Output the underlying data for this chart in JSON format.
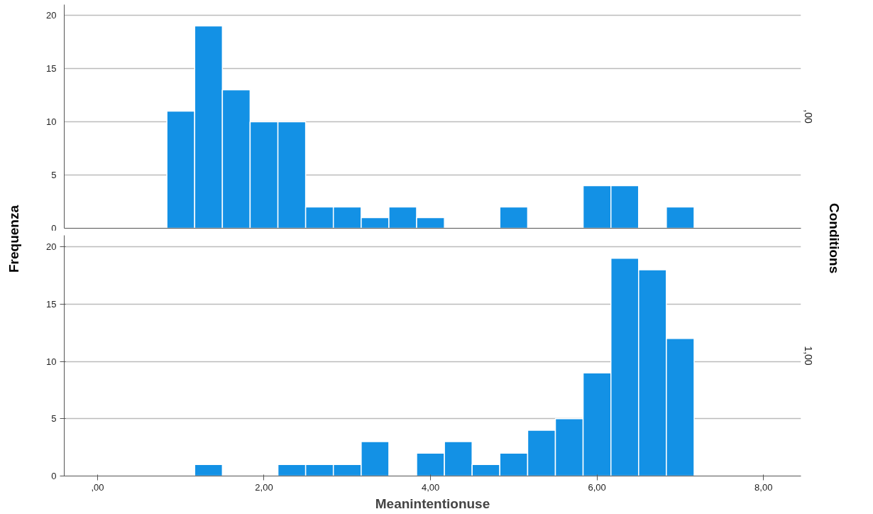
{
  "chart_data": [
    {
      "type": "histogram",
      "ylabel": "Frequenza",
      "y2label": "Conditions",
      "subtitle": ",00",
      "color": "#1391e5",
      "bins": [
        0.833,
        1.167,
        1.5,
        1.833,
        2.167,
        2.5,
        2.833,
        3.167,
        3.5,
        3.833,
        4.167,
        4.5,
        4.833,
        5.167,
        5.5,
        5.833,
        6.167,
        6.5,
        6.833,
        7.167
      ],
      "values": [
        11,
        19,
        13,
        10,
        10,
        2,
        2,
        1,
        2,
        1,
        0,
        0,
        2,
        0,
        0,
        4,
        4,
        0,
        2
      ],
      "xlim": [
        -0.4,
        8.45
      ],
      "ylim": [
        0,
        21
      ],
      "yticks": [
        0,
        5,
        10,
        15,
        20
      ],
      "grid": "y",
      "tick_labels": "y"
    },
    {
      "type": "histogram",
      "xlabel": "Meanintentionuse",
      "subtitle": "1,00",
      "color": "#1391e5",
      "bins": [
        0.833,
        1.167,
        1.5,
        1.833,
        2.167,
        2.5,
        2.833,
        3.167,
        3.5,
        3.833,
        4.167,
        4.5,
        4.833,
        5.167,
        5.5,
        5.833,
        6.167,
        6.5,
        6.833,
        7.167
      ],
      "values": [
        0,
        1,
        0,
        0,
        1,
        1,
        1,
        3,
        0,
        2,
        3,
        1,
        2,
        4,
        5,
        9,
        19,
        18,
        12
      ],
      "xlim": [
        -0.4,
        8.45
      ],
      "ylim": [
        0,
        21
      ],
      "xticks": [
        {
          "value": 0,
          "label": ",00"
        },
        {
          "value": 2,
          "label": "2,00"
        },
        {
          "value": 4,
          "label": "4,00"
        },
        {
          "value": 6,
          "label": "6,00"
        },
        {
          "value": 8,
          "label": "8,00"
        }
      ],
      "yticks": [
        0,
        5,
        10,
        15,
        20
      ],
      "grid": "y"
    }
  ]
}
